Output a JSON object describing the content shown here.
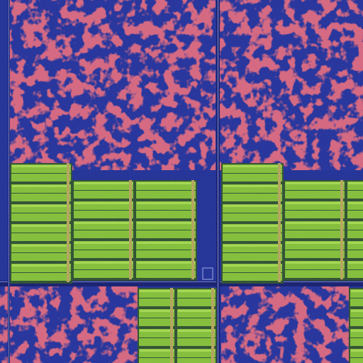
{
  "image": {
    "subject": "chip-die-micrograph",
    "colors": {
      "substrate": "#1c2a8e",
      "substrate_dark": "#16207a",
      "logic": "#d8262c",
      "logic_light": "#ee3b3b",
      "memory": "#8fd120",
      "memory_light": "#b6ee3c",
      "memory_edge": "#2d4f18",
      "trace": "#7f86c8",
      "rail": "#0f1660"
    }
  }
}
